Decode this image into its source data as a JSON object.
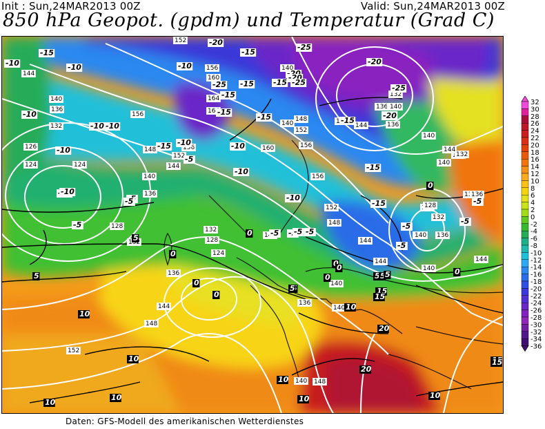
{
  "header": {
    "init": "Init : Sun,24MAR2013 00Z",
    "valid": "Valid: Sun,24MAR2013 00Z",
    "title": "850 hPa Geopot. (gpdm) und Temperatur (Grad C)"
  },
  "footer": "Daten: GFS-Modell des amerikanischen Wetterdienstes",
  "colorbar": {
    "labels": [
      "32",
      "30",
      "28",
      "26",
      "24",
      "22",
      "20",
      "18",
      "16",
      "14",
      "12",
      "10",
      "8",
      "6",
      "4",
      "2",
      "0",
      "-2",
      "-4",
      "-6",
      "-8",
      "-10",
      "-12",
      "-14",
      "-16",
      "-18",
      "-20",
      "-22",
      "-24",
      "-26",
      "-28",
      "-30",
      "-32",
      "-34",
      "-36"
    ],
    "colors": [
      "#f04ad8",
      "#e0209a",
      "#a8103c",
      "#bc1828",
      "#cc1e20",
      "#d83018",
      "#e04010",
      "#e85a10",
      "#f07410",
      "#f49018",
      "#f8aa20",
      "#fcc01a",
      "#f4d410",
      "#e4e020",
      "#c8e418",
      "#a0dc18",
      "#60c820",
      "#38b830",
      "#28ac58",
      "#20b088",
      "#20b8b0",
      "#20c0d8",
      "#30a8f0",
      "#2c88f0",
      "#2c6ce8",
      "#3050e0",
      "#3a38d8",
      "#5030d0",
      "#6828c8",
      "#8024c0",
      "#9028b8",
      "#7020a0",
      "#501888",
      "#401070"
    ]
  },
  "geopotential_labels": [
    {
      "t": "152"
    },
    {
      "t": "156"
    },
    {
      "t": "160"
    },
    {
      "t": "164"
    },
    {
      "t": "164"
    },
    {
      "t": "140"
    },
    {
      "t": "140"
    },
    {
      "t": "132"
    },
    {
      "t": "136"
    },
    {
      "t": "140"
    },
    {
      "t": "144"
    },
    {
      "t": "140"
    },
    {
      "t": "136"
    },
    {
      "t": "132"
    },
    {
      "t": "126"
    },
    {
      "t": "124"
    },
    {
      "t": "124"
    },
    {
      "t": "156"
    },
    {
      "t": "148"
    },
    {
      "t": "152"
    },
    {
      "t": "144"
    },
    {
      "t": "156"
    },
    {
      "t": "140"
    },
    {
      "t": "136"
    },
    {
      "t": "128"
    },
    {
      "t": "132"
    },
    {
      "t": "132"
    },
    {
      "t": "128"
    },
    {
      "t": "124"
    },
    {
      "t": "136"
    },
    {
      "t": "144"
    },
    {
      "t": "148"
    },
    {
      "t": "152"
    },
    {
      "t": "148"
    },
    {
      "t": "152"
    },
    {
      "t": "156"
    },
    {
      "t": "160"
    },
    {
      "t": "156"
    },
    {
      "t": "152"
    },
    {
      "t": "148"
    },
    {
      "t": "144"
    },
    {
      "t": "140"
    },
    {
      "t": "136"
    },
    {
      "t": "132"
    },
    {
      "t": "128"
    },
    {
      "t": "140"
    },
    {
      "t": "148"
    },
    {
      "t": "144"
    },
    {
      "t": "140"
    },
    {
      "t": "144"
    },
    {
      "t": "140"
    },
    {
      "t": "136"
    },
    {
      "t": "136"
    },
    {
      "t": "140"
    },
    {
      "t": "140"
    },
    {
      "t": "148"
    },
    {
      "t": "136"
    },
    {
      "t": "140"
    },
    {
      "t": "144"
    },
    {
      "t": "140"
    },
    {
      "t": "136"
    },
    {
      "t": "132"
    },
    {
      "t": "128"
    },
    {
      "t": "132"
    },
    {
      "t": "136"
    },
    {
      "t": "144"
    },
    {
      "t": "144"
    },
    {
      "t": "140"
    }
  ],
  "temperature_labels": [
    {
      "t": "-15"
    },
    {
      "t": "-10"
    },
    {
      "t": "-10"
    },
    {
      "t": "-10"
    },
    {
      "t": "-10"
    },
    {
      "t": "-20"
    },
    {
      "t": "-15"
    },
    {
      "t": "-20"
    },
    {
      "t": "-25"
    },
    {
      "t": "-15"
    },
    {
      "t": "-15"
    },
    {
      "t": "-20"
    },
    {
      "t": "-15"
    },
    {
      "t": "-10"
    },
    {
      "t": "-25"
    },
    {
      "t": "-25"
    },
    {
      "t": "-20"
    },
    {
      "t": "-20"
    },
    {
      "t": "-25"
    },
    {
      "t": "-20"
    },
    {
      "t": "-15"
    },
    {
      "t": "-15"
    },
    {
      "t": "-15"
    },
    {
      "t": "-10"
    },
    {
      "t": "-10"
    },
    {
      "t": "-10"
    },
    {
      "t": "-15"
    },
    {
      "t": "-5"
    },
    {
      "t": "-10"
    },
    {
      "t": "-10"
    },
    {
      "t": "-5"
    },
    {
      "t": "-10"
    },
    {
      "t": "-10"
    },
    {
      "t": "-5"
    },
    {
      "t": "-5"
    },
    {
      "t": "-5"
    },
    {
      "t": "-5"
    },
    {
      "t": "-10"
    },
    {
      "t": "-15"
    },
    {
      "t": "-15"
    },
    {
      "t": "-5"
    },
    {
      "t": "-5"
    },
    {
      "t": "-5"
    },
    {
      "t": "0"
    },
    {
      "t": "-5"
    },
    {
      "t": "-5"
    },
    {
      "t": "-5"
    },
    {
      "t": "0"
    },
    {
      "t": "0"
    },
    {
      "t": "0"
    },
    {
      "t": "5"
    },
    {
      "t": "5"
    },
    {
      "t": "5"
    },
    {
      "t": "0"
    },
    {
      "t": "5"
    },
    {
      "t": "0"
    },
    {
      "t": "0"
    },
    {
      "t": "0"
    },
    {
      "t": "0"
    },
    {
      "t": "5"
    },
    {
      "t": "5"
    },
    {
      "t": "10"
    },
    {
      "t": "10"
    },
    {
      "t": "10"
    },
    {
      "t": "10"
    },
    {
      "t": "10"
    },
    {
      "t": "10"
    },
    {
      "t": "10"
    },
    {
      "t": "15"
    },
    {
      "t": "15"
    },
    {
      "t": "20"
    },
    {
      "t": "20"
    },
    {
      "t": "15"
    },
    {
      "t": "15"
    },
    {
      "t": "10"
    },
    {
      "t": "5"
    }
  ]
}
